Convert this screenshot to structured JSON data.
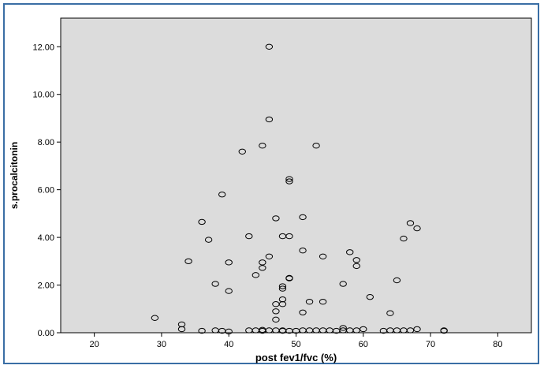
{
  "chart_data": {
    "type": "scatter",
    "title": "",
    "xlabel": "post fev1/fvc (%)",
    "ylabel": "s.procalcitonin",
    "xlim": [
      15,
      85
    ],
    "ylim": [
      0,
      13.2
    ],
    "xticks": [
      "20",
      "30",
      "40",
      "50",
      "60",
      "70",
      "80"
    ],
    "yticks": [
      "0.00",
      "2.00",
      "4.00",
      "6.00",
      "8.00",
      "10.00",
      "12.00"
    ],
    "grid": false,
    "colors": {
      "plot_background": "#dcdcdc",
      "marker_edge": "#000000",
      "frame_border": "#3a6ea5"
    },
    "points": [
      [
        29,
        0.62
      ],
      [
        33,
        0.35
      ],
      [
        33,
        0.15
      ],
      [
        34,
        3.0
      ],
      [
        36,
        4.65
      ],
      [
        36,
        0.08
      ],
      [
        37,
        3.9
      ],
      [
        38,
        2.05
      ],
      [
        38,
        0.1
      ],
      [
        39,
        5.8
      ],
      [
        39,
        0.08
      ],
      [
        40,
        2.95
      ],
      [
        40,
        1.75
      ],
      [
        40,
        0.05
      ],
      [
        42,
        7.6
      ],
      [
        43,
        4.05
      ],
      [
        43,
        0.1
      ],
      [
        44,
        2.42
      ],
      [
        44,
        0.1
      ],
      [
        45,
        7.85
      ],
      [
        45,
        2.95
      ],
      [
        45,
        2.72
      ],
      [
        45,
        0.12
      ],
      [
        45,
        0.08
      ],
      [
        46,
        12.0
      ],
      [
        46,
        8.95
      ],
      [
        46,
        3.2
      ],
      [
        46,
        0.1
      ],
      [
        47,
        4.8
      ],
      [
        47,
        1.2
      ],
      [
        47,
        0.9
      ],
      [
        47,
        0.55
      ],
      [
        47,
        0.1
      ],
      [
        48,
        4.05
      ],
      [
        48,
        1.95
      ],
      [
        48,
        1.85
      ],
      [
        48,
        1.4
      ],
      [
        48,
        1.2
      ],
      [
        48,
        0.1
      ],
      [
        48,
        0.08
      ],
      [
        49,
        6.45
      ],
      [
        49,
        6.35
      ],
      [
        49,
        4.05
      ],
      [
        49,
        2.3
      ],
      [
        49,
        2.28
      ],
      [
        49,
        0.08
      ],
      [
        50,
        0.08
      ],
      [
        51,
        4.85
      ],
      [
        51,
        3.45
      ],
      [
        51,
        0.85
      ],
      [
        51,
        0.1
      ],
      [
        52,
        1.3
      ],
      [
        52,
        0.1
      ],
      [
        53,
        7.85
      ],
      [
        53,
        0.1
      ],
      [
        54,
        3.2
      ],
      [
        54,
        1.3
      ],
      [
        54,
        0.1
      ],
      [
        55,
        0.1
      ],
      [
        56,
        0.08
      ],
      [
        57,
        2.05
      ],
      [
        57,
        0.2
      ],
      [
        57,
        0.1
      ],
      [
        58,
        3.38
      ],
      [
        58,
        0.1
      ],
      [
        59,
        3.05
      ],
      [
        59,
        2.8
      ],
      [
        59,
        0.1
      ],
      [
        60,
        0.15
      ],
      [
        61,
        1.5
      ],
      [
        63,
        0.08
      ],
      [
        64,
        0.82
      ],
      [
        64,
        0.1
      ],
      [
        65,
        2.2
      ],
      [
        65,
        0.1
      ],
      [
        66,
        3.95
      ],
      [
        66,
        0.1
      ],
      [
        67,
        4.6
      ],
      [
        67,
        0.1
      ],
      [
        68,
        4.38
      ],
      [
        68,
        0.15
      ],
      [
        72,
        0.1
      ],
      [
        72,
        0.08
      ]
    ]
  }
}
